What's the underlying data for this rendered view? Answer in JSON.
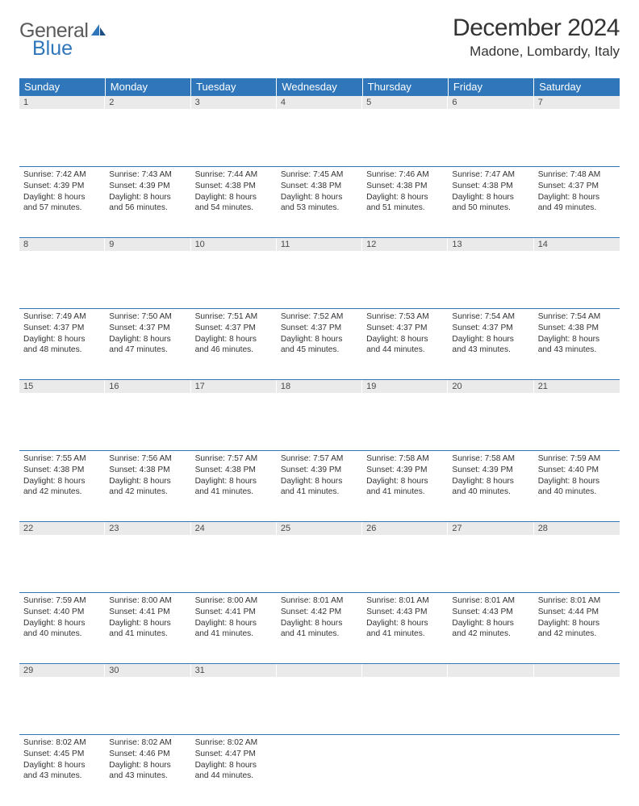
{
  "logo": {
    "word1": "General",
    "word2": "Blue"
  },
  "header": {
    "month_title": "December 2024",
    "location": "Madone, Lombardy, Italy"
  },
  "colors": {
    "header_bg": "#2f76bb",
    "header_text": "#ffffff",
    "daynum_bg": "#eaeaea",
    "daynum_text": "#4a4a4a",
    "body_text": "#333333",
    "rule": "#2f76bb",
    "page_bg": "#ffffff",
    "logo_gray": "#5b5b5b",
    "logo_blue": "#2f76bb"
  },
  "typography": {
    "month_title_size": 30,
    "location_size": 17,
    "weekday_size": 13,
    "daynum_size": 11,
    "cell_size": 10.2
  },
  "calendar": {
    "type": "table",
    "weekdays": [
      "Sunday",
      "Monday",
      "Tuesday",
      "Wednesday",
      "Thursday",
      "Friday",
      "Saturday"
    ],
    "weeks": [
      [
        {
          "n": "1",
          "sunrise": "7:42 AM",
          "sunset": "4:39 PM",
          "day_h": "8",
          "day_m": "57"
        },
        {
          "n": "2",
          "sunrise": "7:43 AM",
          "sunset": "4:39 PM",
          "day_h": "8",
          "day_m": "56"
        },
        {
          "n": "3",
          "sunrise": "7:44 AM",
          "sunset": "4:38 PM",
          "day_h": "8",
          "day_m": "54"
        },
        {
          "n": "4",
          "sunrise": "7:45 AM",
          "sunset": "4:38 PM",
          "day_h": "8",
          "day_m": "53"
        },
        {
          "n": "5",
          "sunrise": "7:46 AM",
          "sunset": "4:38 PM",
          "day_h": "8",
          "day_m": "51"
        },
        {
          "n": "6",
          "sunrise": "7:47 AM",
          "sunset": "4:38 PM",
          "day_h": "8",
          "day_m": "50"
        },
        {
          "n": "7",
          "sunrise": "7:48 AM",
          "sunset": "4:37 PM",
          "day_h": "8",
          "day_m": "49"
        }
      ],
      [
        {
          "n": "8",
          "sunrise": "7:49 AM",
          "sunset": "4:37 PM",
          "day_h": "8",
          "day_m": "48"
        },
        {
          "n": "9",
          "sunrise": "7:50 AM",
          "sunset": "4:37 PM",
          "day_h": "8",
          "day_m": "47"
        },
        {
          "n": "10",
          "sunrise": "7:51 AM",
          "sunset": "4:37 PM",
          "day_h": "8",
          "day_m": "46"
        },
        {
          "n": "11",
          "sunrise": "7:52 AM",
          "sunset": "4:37 PM",
          "day_h": "8",
          "day_m": "45"
        },
        {
          "n": "12",
          "sunrise": "7:53 AM",
          "sunset": "4:37 PM",
          "day_h": "8",
          "day_m": "44"
        },
        {
          "n": "13",
          "sunrise": "7:54 AM",
          "sunset": "4:37 PM",
          "day_h": "8",
          "day_m": "43"
        },
        {
          "n": "14",
          "sunrise": "7:54 AM",
          "sunset": "4:38 PM",
          "day_h": "8",
          "day_m": "43"
        }
      ],
      [
        {
          "n": "15",
          "sunrise": "7:55 AM",
          "sunset": "4:38 PM",
          "day_h": "8",
          "day_m": "42"
        },
        {
          "n": "16",
          "sunrise": "7:56 AM",
          "sunset": "4:38 PM",
          "day_h": "8",
          "day_m": "42"
        },
        {
          "n": "17",
          "sunrise": "7:57 AM",
          "sunset": "4:38 PM",
          "day_h": "8",
          "day_m": "41"
        },
        {
          "n": "18",
          "sunrise": "7:57 AM",
          "sunset": "4:39 PM",
          "day_h": "8",
          "day_m": "41"
        },
        {
          "n": "19",
          "sunrise": "7:58 AM",
          "sunset": "4:39 PM",
          "day_h": "8",
          "day_m": "41"
        },
        {
          "n": "20",
          "sunrise": "7:58 AM",
          "sunset": "4:39 PM",
          "day_h": "8",
          "day_m": "40"
        },
        {
          "n": "21",
          "sunrise": "7:59 AM",
          "sunset": "4:40 PM",
          "day_h": "8",
          "day_m": "40"
        }
      ],
      [
        {
          "n": "22",
          "sunrise": "7:59 AM",
          "sunset": "4:40 PM",
          "day_h": "8",
          "day_m": "40"
        },
        {
          "n": "23",
          "sunrise": "8:00 AM",
          "sunset": "4:41 PM",
          "day_h": "8",
          "day_m": "41"
        },
        {
          "n": "24",
          "sunrise": "8:00 AM",
          "sunset": "4:41 PM",
          "day_h": "8",
          "day_m": "41"
        },
        {
          "n": "25",
          "sunrise": "8:01 AM",
          "sunset": "4:42 PM",
          "day_h": "8",
          "day_m": "41"
        },
        {
          "n": "26",
          "sunrise": "8:01 AM",
          "sunset": "4:43 PM",
          "day_h": "8",
          "day_m": "41"
        },
        {
          "n": "27",
          "sunrise": "8:01 AM",
          "sunset": "4:43 PM",
          "day_h": "8",
          "day_m": "42"
        },
        {
          "n": "28",
          "sunrise": "8:01 AM",
          "sunset": "4:44 PM",
          "day_h": "8",
          "day_m": "42"
        }
      ],
      [
        {
          "n": "29",
          "sunrise": "8:02 AM",
          "sunset": "4:45 PM",
          "day_h": "8",
          "day_m": "43"
        },
        {
          "n": "30",
          "sunrise": "8:02 AM",
          "sunset": "4:46 PM",
          "day_h": "8",
          "day_m": "43"
        },
        {
          "n": "31",
          "sunrise": "8:02 AM",
          "sunset": "4:47 PM",
          "day_h": "8",
          "day_m": "44"
        },
        null,
        null,
        null,
        null
      ]
    ],
    "labels": {
      "sunrise_prefix": "Sunrise: ",
      "sunset_prefix": "Sunset: ",
      "daylight_prefix": "Daylight: ",
      "hours_word": " hours",
      "and_word": "and ",
      "minutes_word": " minutes."
    }
  }
}
